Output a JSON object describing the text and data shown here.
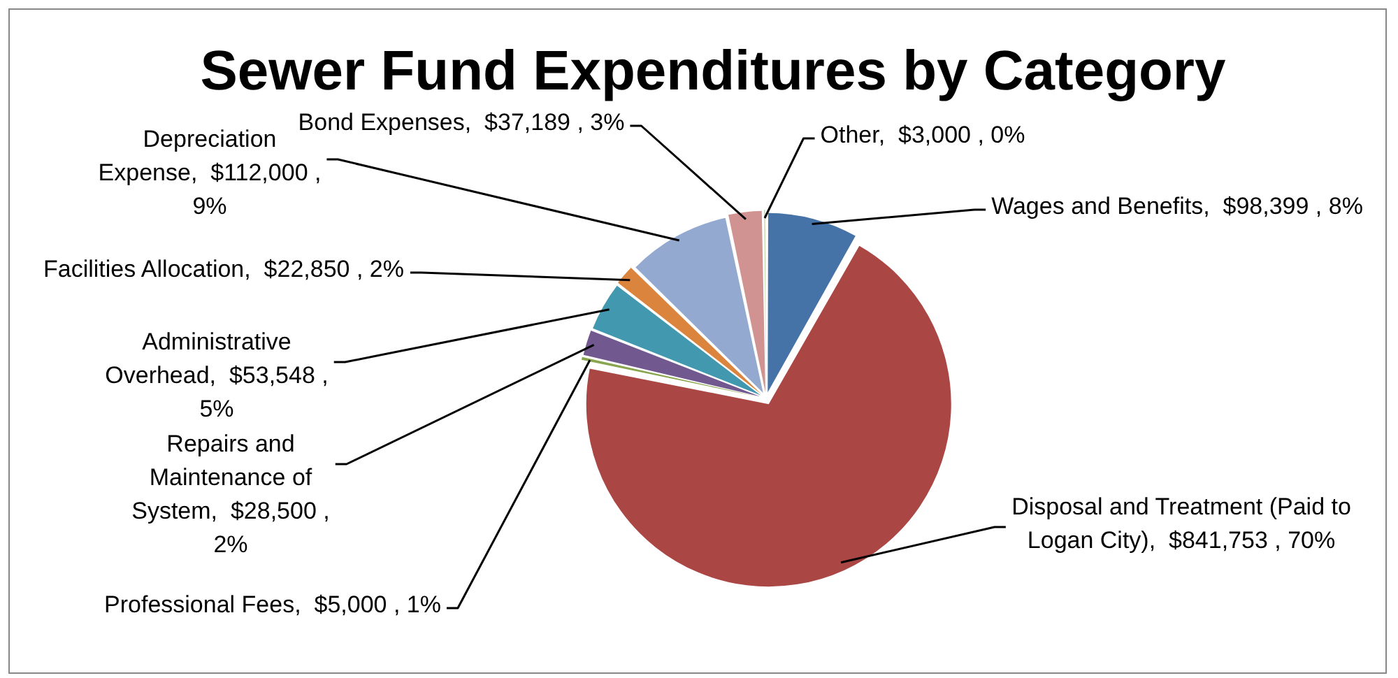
{
  "chart_data": {
    "type": "pie",
    "title": "Sewer Fund Expenditures by Category",
    "categories": [
      "Wages and Benefits",
      "Disposal and Treatment (Paid to Logan City)",
      "Professional Fees",
      "Repairs and Maintenance of System",
      "Administrative Overhead",
      "Facilities Allocation",
      "Depreciation Expense",
      "Bond Expenses",
      "Other"
    ],
    "values": [
      98399,
      841753,
      5000,
      28500,
      53548,
      22850,
      112000,
      37189,
      3000
    ],
    "colors": [
      "#4572a7",
      "#aa4643",
      "#89a54e",
      "#71588f",
      "#4198af",
      "#db843d",
      "#93a9cf",
      "#d19392",
      "#b9cd96"
    ],
    "value_labels": [
      "$98,399 , 8%",
      "$841,753 , 70%",
      "$5,000 , 1%",
      "$28,500 , 2%",
      "$53,548 , 5%",
      "$22,850 , 2%",
      "$112,000 , 9%",
      "$37,189 , 3%",
      "$3,000 , 0%"
    ],
    "legend": false
  }
}
